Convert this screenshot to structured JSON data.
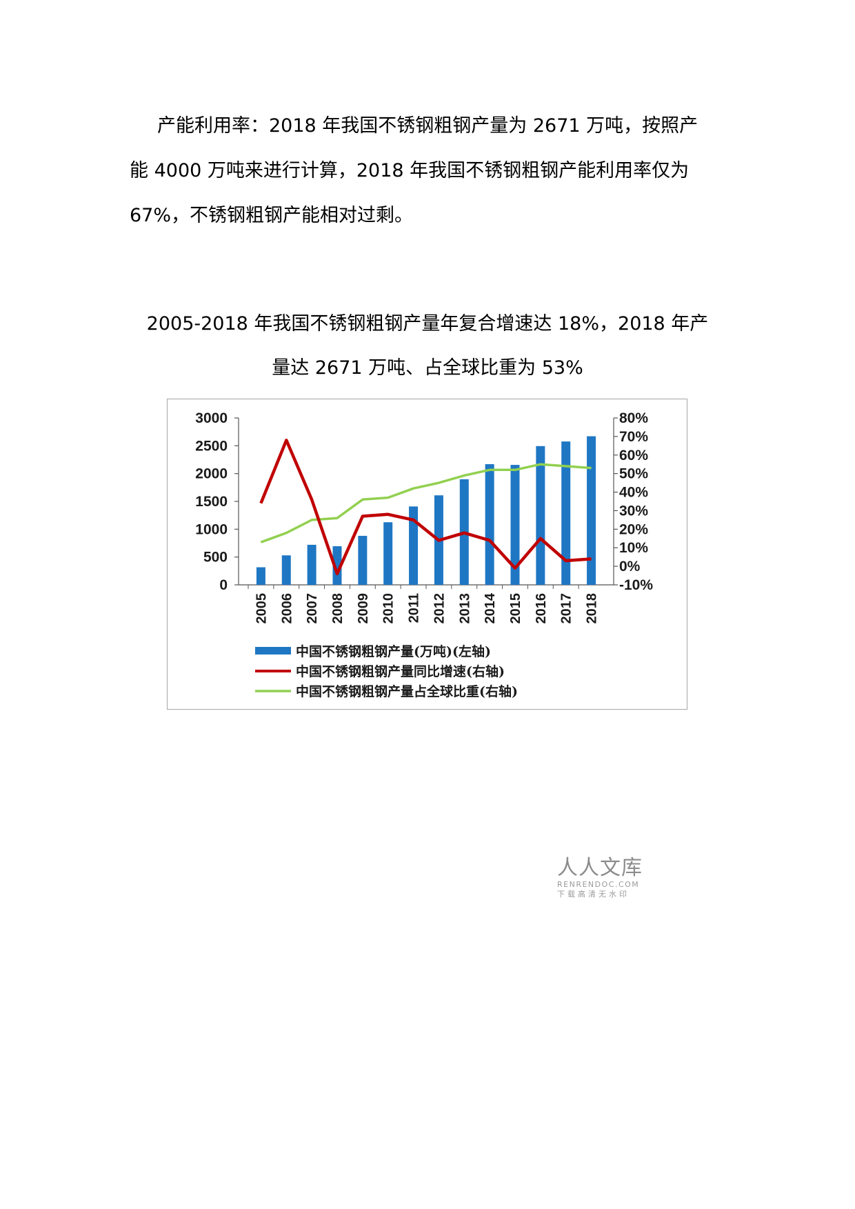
{
  "paragraph": {
    "line1": "产能利用率：2018 年我国不锈钢粗钢产量为 2671 万吨，按照产",
    "line2": "能 4000 万吨来进行计算，2018 年我国不锈钢粗钢产能利用率仅为",
    "line3": "67%，不锈钢粗钢产能相对过剩。"
  },
  "figure_caption": {
    "line1": "2005-2018 年我国不锈钢粗钢产量年复合增速达 18%，2018 年产",
    "line2": "量达 2671 万吨、占全球比重为 53%"
  },
  "chart_data": {
    "type": "bar",
    "categories": [
      "2005",
      "2006",
      "2007",
      "2008",
      "2009",
      "2010",
      "2011",
      "2012",
      "2013",
      "2014",
      "2015",
      "2016",
      "2017",
      "2018"
    ],
    "y_left": {
      "ticks": [
        "3000",
        "2500",
        "2000",
        "1500",
        "1000",
        "500",
        "0"
      ],
      "ylim": [
        0,
        3000
      ]
    },
    "y_right": {
      "ticks": [
        "80%",
        "70%",
        "60%",
        "50%",
        "40%",
        "30%",
        "20%",
        "10%",
        "0%",
        "-10%"
      ],
      "ylim": [
        -0.1,
        0.8
      ]
    },
    "series": [
      {
        "name": "中国不锈钢粗钢产量(万吨)(左轴)",
        "type": "bar",
        "axis": "left",
        "color": "#1f77c4",
        "values": [
          316,
          530,
          720,
          694,
          881,
          1125,
          1409,
          1609,
          1898,
          2169,
          2156,
          2494,
          2577,
          2671
        ]
      },
      {
        "name": "中国不锈钢粗钢产量同比增速(右轴)",
        "type": "line",
        "axis": "right",
        "color": "#c00000",
        "values": [
          0.34,
          0.68,
          0.36,
          -0.04,
          0.27,
          0.28,
          0.25,
          0.14,
          0.18,
          0.14,
          -0.01,
          0.15,
          0.03,
          0.04
        ]
      },
      {
        "name": "中国不锈钢粗钢产量占全球比重(右轴)",
        "type": "line",
        "axis": "right",
        "color": "#92d050",
        "values": [
          0.13,
          0.18,
          0.25,
          0.26,
          0.36,
          0.37,
          0.42,
          0.45,
          0.49,
          0.52,
          0.52,
          0.55,
          0.54,
          0.53
        ]
      }
    ]
  },
  "watermark": {
    "name": "人人文库",
    "url": "RENRENDOC.COM",
    "tagline": "下载高清无水印"
  }
}
